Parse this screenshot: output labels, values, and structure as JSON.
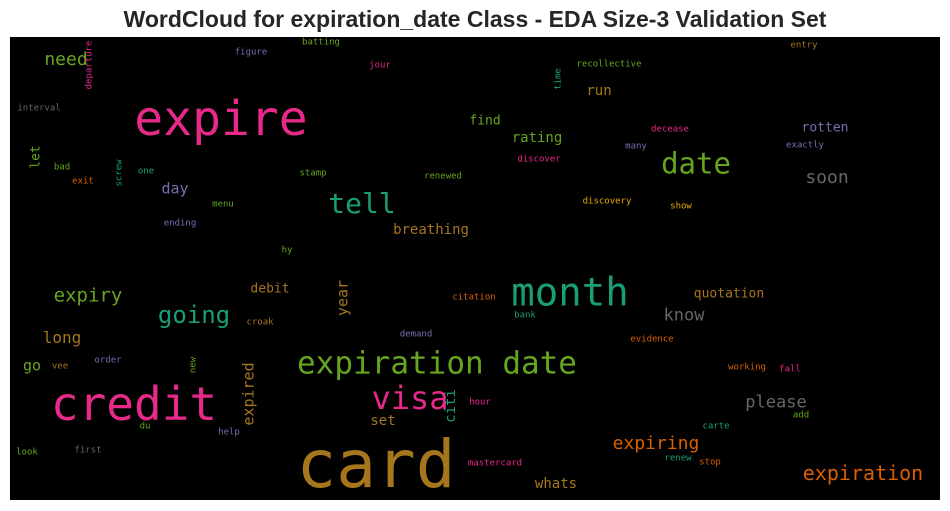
{
  "title": "WordCloud for expiration_date Class - EDA Size-3 Validation Set",
  "chart_data": {
    "type": "wordcloud",
    "background": "#000000",
    "words": [
      {
        "text": "card",
        "color": "#a6761d"
      },
      {
        "text": "credit",
        "color": "#e7298a"
      },
      {
        "text": "expire",
        "color": "#e7298a"
      },
      {
        "text": "expiration date",
        "color": "#66a61e"
      },
      {
        "text": "month",
        "color": "#1b9e77"
      },
      {
        "text": "visa",
        "color": "#e7298a"
      },
      {
        "text": "date",
        "color": "#66a61e"
      },
      {
        "text": "tell",
        "color": "#1b9e77"
      },
      {
        "text": "expiration",
        "color": "#d95f02"
      },
      {
        "text": "going",
        "color": "#1b9e77"
      },
      {
        "text": "expiry",
        "color": "#66a61e"
      },
      {
        "text": "expiring",
        "color": "#d95f02"
      },
      {
        "text": "please",
        "color": "#666666"
      },
      {
        "text": "soon",
        "color": "#666666"
      },
      {
        "text": "know",
        "color": "#666666"
      },
      {
        "text": "need",
        "color": "#66a61e"
      },
      {
        "text": "long",
        "color": "#a6761d"
      },
      {
        "text": "breathing",
        "color": "#a6761d"
      },
      {
        "text": "rotten",
        "color": "#7570b3"
      },
      {
        "text": "quotation",
        "color": "#a6761d"
      },
      {
        "text": "expired",
        "color": "#a6761d"
      },
      {
        "text": "day",
        "color": "#7570b3"
      },
      {
        "text": "run",
        "color": "#a6761d"
      },
      {
        "text": "rating",
        "color": "#66a61e"
      },
      {
        "text": "find",
        "color": "#66a61e"
      },
      {
        "text": "year",
        "color": "#a6761d"
      },
      {
        "text": "set",
        "color": "#a6761d"
      },
      {
        "text": "go",
        "color": "#66a61e"
      },
      {
        "text": "whats",
        "color": "#a6761d"
      },
      {
        "text": "debit",
        "color": "#a6761d"
      },
      {
        "text": "citi",
        "color": "#1b9e77"
      },
      {
        "text": "let",
        "color": "#66a61e"
      },
      {
        "text": "figure",
        "color": "#7570b3"
      },
      {
        "text": "batting",
        "color": "#66a61e"
      },
      {
        "text": "jour",
        "color": "#e7298a"
      },
      {
        "text": "recollective",
        "color": "#66a61e"
      },
      {
        "text": "entry",
        "color": "#a6761d"
      },
      {
        "text": "departure",
        "color": "#e7298a"
      },
      {
        "text": "time",
        "color": "#1b9e77"
      },
      {
        "text": "interval",
        "color": "#666666"
      },
      {
        "text": "decease",
        "color": "#e7298a"
      },
      {
        "text": "many",
        "color": "#7570b3"
      },
      {
        "text": "exactly",
        "color": "#7570b3"
      },
      {
        "text": "discover",
        "color": "#e7298a"
      },
      {
        "text": "bad",
        "color": "#66a61e"
      },
      {
        "text": "one",
        "color": "#1b9e77"
      },
      {
        "text": "screw",
        "color": "#1b9e77"
      },
      {
        "text": "stamp",
        "color": "#66a61e"
      },
      {
        "text": "renewed",
        "color": "#66a61e"
      },
      {
        "text": "exit",
        "color": "#d95f02"
      },
      {
        "text": "menu",
        "color": "#66a61e"
      },
      {
        "text": "discovery",
        "color": "#e6ab02"
      },
      {
        "text": "show",
        "color": "#e6ab02"
      },
      {
        "text": "ending",
        "color": "#7570b3"
      },
      {
        "text": "hy",
        "color": "#66a61e"
      },
      {
        "text": "citation",
        "color": "#d95f02"
      },
      {
        "text": "croak",
        "color": "#a6761d"
      },
      {
        "text": "bank",
        "color": "#1b9e77"
      },
      {
        "text": "demand",
        "color": "#7570b3"
      },
      {
        "text": "evidence",
        "color": "#d95f02"
      },
      {
        "text": "order",
        "color": "#7570b3"
      },
      {
        "text": "new",
        "color": "#66a61e"
      },
      {
        "text": "vee",
        "color": "#a6761d"
      },
      {
        "text": "working",
        "color": "#d95f02"
      },
      {
        "text": "fall",
        "color": "#e7298a"
      },
      {
        "text": "hour",
        "color": "#e7298a"
      },
      {
        "text": "add",
        "color": "#66a61e"
      },
      {
        "text": "du",
        "color": "#66a61e"
      },
      {
        "text": "help",
        "color": "#7570b3"
      },
      {
        "text": "carte",
        "color": "#1b9e77"
      },
      {
        "text": "look",
        "color": "#66a61e"
      },
      {
        "text": "first",
        "color": "#666666"
      },
      {
        "text": "mastercard",
        "color": "#e7298a"
      },
      {
        "text": "renew",
        "color": "#1b9e77"
      },
      {
        "text": "stop",
        "color": "#d95f02"
      }
    ]
  }
}
